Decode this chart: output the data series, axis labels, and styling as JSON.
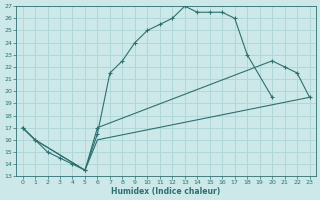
{
  "xlabel": "Humidex (Indice chaleur)",
  "xlim": [
    -0.5,
    23.5
  ],
  "ylim": [
    13,
    27
  ],
  "xticks": [
    0,
    1,
    2,
    3,
    4,
    5,
    6,
    7,
    8,
    9,
    10,
    11,
    12,
    13,
    14,
    15,
    16,
    17,
    18,
    19,
    20,
    21,
    22,
    23
  ],
  "yticks": [
    13,
    14,
    15,
    16,
    17,
    18,
    19,
    20,
    21,
    22,
    23,
    24,
    25,
    26,
    27
  ],
  "bg_color": "#cce8e8",
  "grid_color": "#b0d8d8",
  "line_color": "#2d7070",
  "curve1_x": [
    0,
    1,
    2,
    3,
    4,
    5,
    6,
    7,
    8,
    9,
    10,
    11,
    12,
    13,
    14,
    15,
    16,
    17,
    18,
    20
  ],
  "curve1_y": [
    17,
    16,
    15,
    14.5,
    14,
    13.5,
    16.5,
    21.5,
    22.5,
    24,
    25,
    25.5,
    26,
    27,
    26.5,
    26.5,
    26.5,
    26,
    23,
    19.5
  ],
  "curve2_x": [
    0,
    1,
    5,
    6,
    20,
    21,
    22,
    23
  ],
  "curve2_y": [
    17,
    16,
    13.5,
    17,
    22.5,
    22,
    21.5,
    19.5
  ],
  "curve3_x": [
    0,
    1,
    5,
    6,
    23
  ],
  "curve3_y": [
    17,
    16,
    13.5,
    16,
    19.5
  ]
}
